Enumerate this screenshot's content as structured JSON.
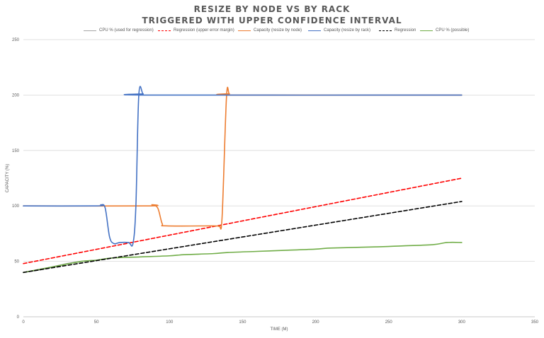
{
  "chart_data": {
    "type": "line",
    "title": "RESIZE BY NODE VS BY RACK",
    "subtitle": "TRIGGERED WITH UPPER CONFIDENCE INTERVAL",
    "xlabel": "TIME (M)",
    "ylabel": "CAPACITY (%)",
    "xlim": [
      0,
      350
    ],
    "ylim": [
      0,
      250
    ],
    "xticks": [
      0,
      50,
      100,
      150,
      200,
      250,
      300,
      350
    ],
    "yticks": [
      0,
      50,
      100,
      150,
      200,
      250
    ],
    "xtick_labels": [
      "0",
      "50",
      "100",
      "150",
      "200",
      "250",
      "300",
      "350"
    ],
    "ytick_labels": [
      "0",
      "50",
      "100",
      "150",
      "200",
      "250"
    ],
    "grid": "horizontal",
    "legend_position": "top",
    "series": [
      {
        "name": "CPU % (used for regression)",
        "color": "#a5a5a5",
        "dash": "solid",
        "points": [
          [
            0,
            40
          ],
          [
            10,
            42
          ],
          [
            20,
            45
          ],
          [
            30,
            48
          ],
          [
            40,
            50
          ],
          [
            50,
            51
          ]
        ]
      },
      {
        "name": "Regression (upper error margin)",
        "color": "#ff0000",
        "dash": "dashed",
        "points": [
          [
            0,
            48
          ],
          [
            300,
            125
          ]
        ]
      },
      {
        "name": "Capacity (resize by node)",
        "color": "#ed7d31",
        "dash": "solid",
        "points": [
          [
            0,
            100
          ],
          [
            85,
            100
          ],
          [
            88,
            101
          ],
          [
            92,
            98
          ],
          [
            95,
            84
          ],
          [
            98,
            82
          ],
          [
            130,
            82
          ],
          [
            134,
            82
          ],
          [
            136,
            90
          ],
          [
            139,
            198
          ],
          [
            141,
            201
          ],
          [
            145,
            200
          ],
          [
            300,
            200
          ]
        ]
      },
      {
        "name": "Capacity (resize by rack)",
        "color": "#4472c4",
        "dash": "solid",
        "points": [
          [
            0,
            100
          ],
          [
            50,
            100
          ],
          [
            53,
            101
          ],
          [
            56,
            98
          ],
          [
            59,
            72
          ],
          [
            62,
            66
          ],
          [
            66,
            67
          ],
          [
            72,
            67
          ],
          [
            75,
            66
          ],
          [
            77,
            100
          ],
          [
            79,
            200
          ],
          [
            82,
            201
          ],
          [
            86,
            200
          ],
          [
            300,
            200
          ]
        ]
      },
      {
        "name": "Regression",
        "color": "#000000",
        "dash": "dashed",
        "points": [
          [
            0,
            40
          ],
          [
            300,
            104
          ]
        ]
      },
      {
        "name": "CPU % (possible)",
        "color": "#70ad47",
        "dash": "solid",
        "points": [
          [
            0,
            40
          ],
          [
            20,
            45
          ],
          [
            40,
            50
          ],
          [
            50,
            51
          ],
          [
            60,
            53
          ],
          [
            80,
            54
          ],
          [
            100,
            55
          ],
          [
            110,
            56
          ],
          [
            130,
            57
          ],
          [
            140,
            58
          ],
          [
            160,
            59
          ],
          [
            180,
            60
          ],
          [
            200,
            61
          ],
          [
            210,
            62
          ],
          [
            240,
            63
          ],
          [
            260,
            64
          ],
          [
            280,
            65
          ],
          [
            290,
            67
          ],
          [
            300,
            67
          ]
        ]
      }
    ]
  }
}
